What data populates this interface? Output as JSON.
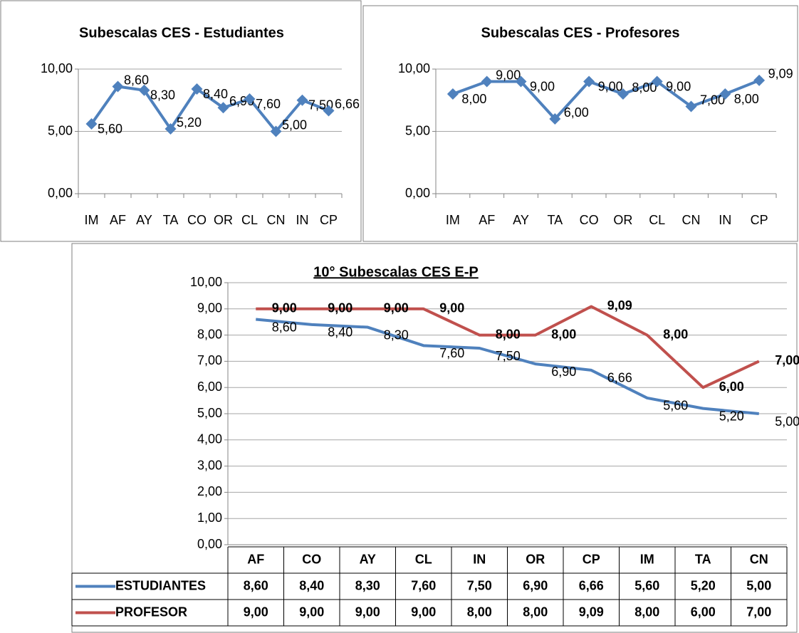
{
  "chart_data": [
    {
      "type": "line",
      "title": "Subescalas CES - Estudiantes",
      "categories": [
        "IM",
        "AF",
        "AY",
        "TA",
        "CO",
        "OR",
        "CL",
        "CN",
        "IN",
        "CP"
      ],
      "series": [
        {
          "name": "Estudiantes",
          "color": "#4f81bd",
          "values": [
            5.6,
            8.6,
            8.3,
            5.2,
            8.4,
            6.9,
            7.6,
            5.0,
            7.5,
            6.66
          ],
          "value_labels": [
            "5,60",
            "8,60",
            "8,30",
            "5,20",
            "8,40",
            "6,90",
            "7,60",
            "5,00",
            "7,50",
            "6,66"
          ]
        }
      ],
      "ylim": [
        0,
        10
      ],
      "yticks": [
        {
          "value": 0,
          "label": "0,00"
        },
        {
          "value": 5,
          "label": "5,00"
        },
        {
          "value": 10,
          "label": "10,00"
        }
      ],
      "grid": true,
      "markers": true
    },
    {
      "type": "line",
      "title": "Subescalas CES - Profesores",
      "categories": [
        "IM",
        "AF",
        "AY",
        "TA",
        "CO",
        "OR",
        "CL",
        "CN",
        "IN",
        "CP"
      ],
      "series": [
        {
          "name": "Profesores",
          "color": "#4f81bd",
          "values": [
            8,
            9,
            9,
            6,
            9,
            8,
            9,
            7,
            8,
            9.09
          ],
          "value_labels": [
            "8,00",
            "9,00",
            "9,00",
            "6,00",
            "9,00",
            "8,00",
            "9,00",
            "7,00",
            "8,00",
            "9,09"
          ]
        }
      ],
      "ylim": [
        0,
        10
      ],
      "yticks": [
        {
          "value": 0,
          "label": "0,00"
        },
        {
          "value": 5,
          "label": "5,00"
        },
        {
          "value": 10,
          "label": "10,00"
        }
      ],
      "grid": true,
      "markers": true
    },
    {
      "type": "line",
      "title": "10° Subescalas CES E-P",
      "categories": [
        "AF",
        "CO",
        "AY",
        "CL",
        "IN",
        "OR",
        "CP",
        "IM",
        "TA",
        "CN"
      ],
      "series": [
        {
          "name": "ESTUDIANTES",
          "color": "#4f81bd",
          "values": [
            8.6,
            8.4,
            8.3,
            7.6,
            7.5,
            6.9,
            6.66,
            5.6,
            5.2,
            5.0
          ],
          "value_labels": [
            "8,60",
            "8,40",
            "8,30",
            "7,60",
            "7,50",
            "6,90",
            "6,66",
            "5,60",
            "5,20",
            "5,00"
          ]
        },
        {
          "name": "PROFESOR",
          "color": "#c0504d",
          "values": [
            9,
            9,
            9,
            9,
            8,
            8,
            9.09,
            8,
            6,
            7
          ],
          "value_labels": [
            "9,00",
            "9,00",
            "9,00",
            "9,00",
            "8,00",
            "8,00",
            "9,09",
            "8,00",
            "6,00",
            "7,00"
          ]
        }
      ],
      "ylim": [
        0,
        10
      ],
      "yticks": [
        {
          "value": 0,
          "label": "0,00"
        },
        {
          "value": 1,
          "label": "1,00"
        },
        {
          "value": 2,
          "label": "2,00"
        },
        {
          "value": 3,
          "label": "3,00"
        },
        {
          "value": 4,
          "label": "4,00"
        },
        {
          "value": 5,
          "label": "5,00"
        },
        {
          "value": 6,
          "label": "6,00"
        },
        {
          "value": 7,
          "label": "7,00"
        },
        {
          "value": 8,
          "label": "8,00"
        },
        {
          "value": 9,
          "label": "9,00"
        },
        {
          "value": 10,
          "label": "10,00"
        }
      ],
      "grid": true,
      "markers": false,
      "data_table": true
    }
  ]
}
